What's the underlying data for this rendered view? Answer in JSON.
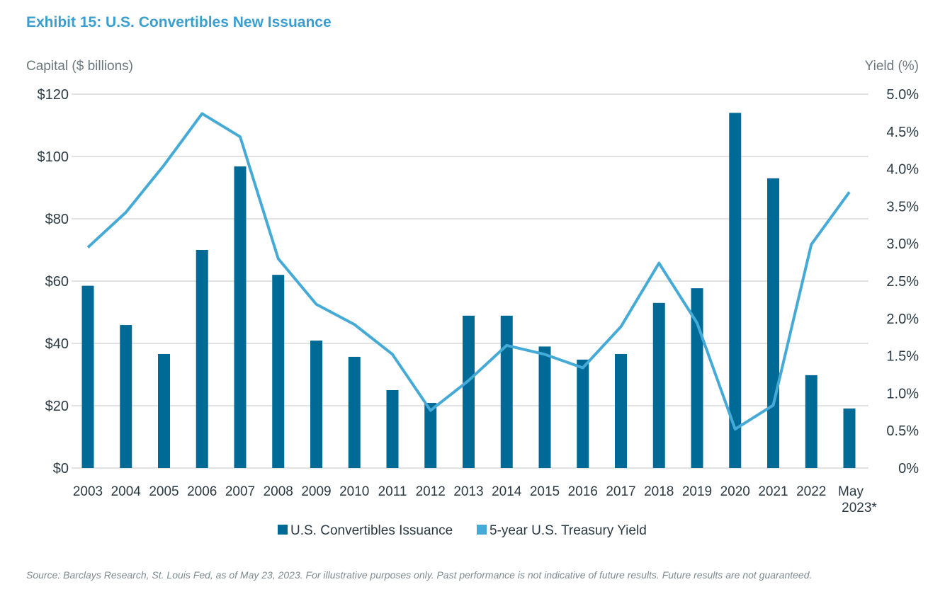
{
  "title": "Exhibit 15: U.S. Convertibles New Issuance",
  "source": "Source: Barclays Research, St. Louis Fed, as of May 23, 2023. For illustrative purposes only. Past performance is not indicative of future results. Future results are not guaranteed.",
  "chart_data": {
    "type": "bar+line",
    "title": "Exhibit 15: U.S. Convertibles New Issuance",
    "ylabel_left": "Capital ($ billions)",
    "ylabel_right": "Yield (%)",
    "ylim_left": [
      0,
      120
    ],
    "ylim_right": [
      0,
      5
    ],
    "yticks_left": [
      "$0",
      "$20",
      "$40",
      "$60",
      "$80",
      "$100",
      "$120"
    ],
    "yticks_right": [
      "0%",
      "0.5%",
      "1.0%",
      "1.5%",
      "2.0%",
      "2.5%",
      "3.0%",
      "3.5%",
      "4.0%",
      "4.5%",
      "5.0%"
    ],
    "grid": true,
    "legend_placement": "bottom",
    "categories": [
      "2003",
      "2004",
      "2005",
      "2006",
      "2007",
      "2008",
      "2009",
      "2010",
      "2011",
      "2012",
      "2013",
      "2014",
      "2015",
      "2016",
      "2017",
      "2018",
      "2019",
      "2020",
      "2021",
      "2022",
      "May 2023*"
    ],
    "series": [
      {
        "name": "U.S. Convertibles Issuance",
        "type": "bar",
        "axis": "left",
        "color": "#006a96",
        "values": [
          58.5,
          45.9,
          36.6,
          70,
          96.8,
          62,
          40.9,
          35.7,
          25,
          20.9,
          48.9,
          48.9,
          39,
          34.8,
          36.6,
          53,
          57.7,
          114,
          93,
          29.8,
          19.1
        ]
      },
      {
        "name": "5-year U.S. Treasury Yield",
        "type": "line",
        "axis": "right",
        "color": "#45aad6",
        "values": [
          2.95,
          3.42,
          4.05,
          4.74,
          4.43,
          2.8,
          2.19,
          1.92,
          1.52,
          0.77,
          1.17,
          1.64,
          1.52,
          1.34,
          1.89,
          2.74,
          1.94,
          0.52,
          0.84,
          2.99,
          3.69
        ]
      }
    ]
  }
}
